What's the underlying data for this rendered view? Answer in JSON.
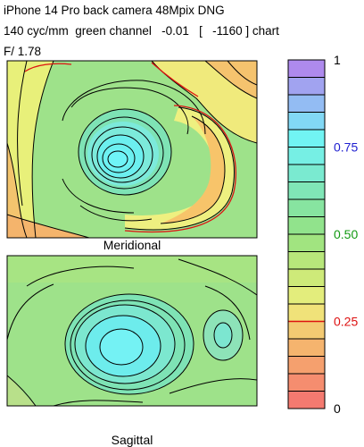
{
  "header": {
    "line1": "iPhone 14 Pro back camera 48Mpix DNG",
    "line2": "140 cyc/mm  green channel   -0.01   [   -1160 ] chart",
    "line3": "F/ 1.78"
  },
  "chart_data": {
    "type": "heatmap",
    "panels": [
      {
        "title": "Meridional"
      },
      {
        "title": "Sagittal"
      }
    ],
    "colorbar": {
      "min": 0,
      "max": 1,
      "levels": 20,
      "ticks": [
        {
          "value": 1,
          "label": "1",
          "color": "#000000"
        },
        {
          "value": 0.75,
          "label": "0.75",
          "color": "#1f1fd0"
        },
        {
          "value": 0.5,
          "label": "0.50",
          "color": "#119911"
        },
        {
          "value": 0.25,
          "label": "0.25",
          "color": "#dd1111"
        },
        {
          "value": 0,
          "label": "0",
          "color": "#000000"
        }
      ],
      "highlighted_contour": 0.25,
      "highlight_color": "#dd1111"
    }
  }
}
